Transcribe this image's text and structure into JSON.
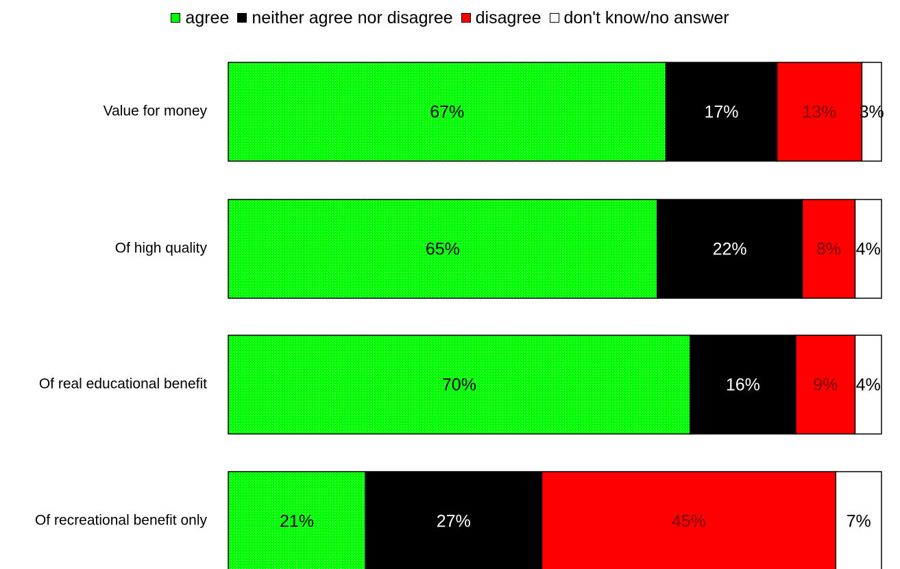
{
  "legend": [
    {
      "label": "agree",
      "color": "#00ff00"
    },
    {
      "label": "neither agree nor disagree",
      "color": "#000000"
    },
    {
      "label": "disagree",
      "color": "#ff0000"
    },
    {
      "label": "don't know/no answer",
      "color": "#ffffff"
    }
  ],
  "chart_data": {
    "type": "bar",
    "orientation": "horizontal",
    "stacked": true,
    "categories": [
      "Value for money",
      "Of high quality",
      "Of real educational benefit",
      "Of recreational benefit only"
    ],
    "series": [
      {
        "name": "agree",
        "values": [
          67,
          65,
          70,
          21
        ],
        "labels": [
          "67%",
          "65%",
          "70%",
          "21%"
        ],
        "color": "#00ff00",
        "label_color": "#000000"
      },
      {
        "name": "neither agree nor disagree",
        "values": [
          17,
          22,
          16,
          27
        ],
        "labels": [
          "17%",
          "22%",
          "16%",
          "27%"
        ],
        "color": "#000000",
        "label_color": "#ffffff"
      },
      {
        "name": "disagree",
        "values": [
          13,
          8,
          9,
          45
        ],
        "labels": [
          "13%",
          "8%",
          "9%",
          "45%"
        ],
        "color": "#ff0000",
        "label_color": "#7a0000"
      },
      {
        "name": "don't know/no answer",
        "values": [
          3,
          4,
          4,
          7
        ],
        "labels": [
          "3%",
          "4%",
          "4%",
          "7%"
        ],
        "color": "#ffffff",
        "label_color": "#000000"
      }
    ],
    "xlim": [
      0,
      100
    ],
    "grid": false,
    "legend_position": "top"
  }
}
